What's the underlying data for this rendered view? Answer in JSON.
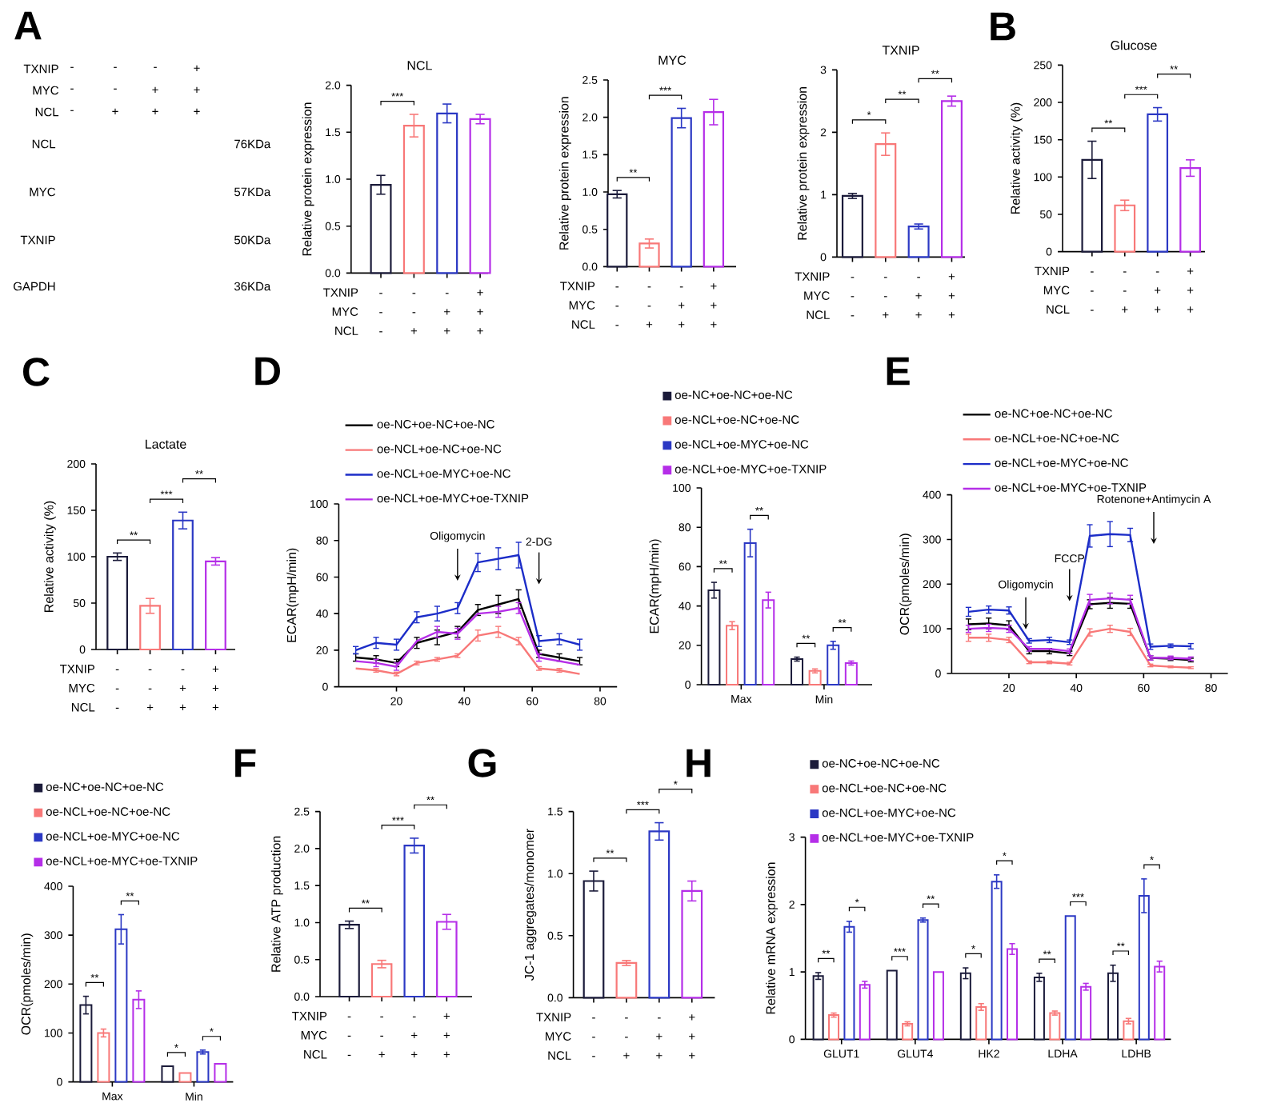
{
  "chart_data": [
    {
      "type": "other",
      "annotations": [
        "A",
        "TXNIP",
        "-",
        "-",
        "-",
        "+",
        "MYC",
        "-",
        "-",
        "+",
        "+",
        "NCL",
        "-",
        "+",
        "+",
        "+",
        "NCL",
        "MYC",
        "TXNIP",
        "GAPDH",
        "76KDa",
        "57KDa",
        "50KDa",
        "36KDa"
      ]
    },
    {
      "type": "bar",
      "title": "NCL",
      "ylabel": "Relative protein expression",
      "categories": [
        null,
        null,
        null,
        null
      ],
      "values": [
        0.94,
        1.57,
        1.7,
        1.64
      ],
      "errors": [
        0.1,
        0.12,
        0.1,
        0.05
      ],
      "colors": [
        "#1b1b3a",
        "#f87878",
        "#2b38c4",
        "#b52ee8"
      ],
      "ylim": [
        0,
        2
      ],
      "yticks": [
        {
          "value": 0,
          "label": "0.0"
        },
        0.5,
        {
          "value": 1,
          "label": "1.0"
        },
        1.5,
        {
          "value": 2,
          "label": "2.0"
        }
      ],
      "annotations": [
        "***",
        "TXNIP",
        "-",
        "-",
        "-",
        "+",
        "MYC",
        "-",
        "-",
        "+",
        "+",
        "NCL",
        "-",
        "+",
        "+",
        "+"
      ]
    },
    {
      "type": "bar",
      "title": "MYC",
      "ylabel": "Relative protein expression",
      "categories": [
        null,
        null,
        null,
        null
      ],
      "values": [
        0.97,
        0.31,
        1.99,
        2.07
      ],
      "errors": [
        0.05,
        0.06,
        0.13,
        0.17
      ],
      "colors": [
        "#1b1b3a",
        "#f87878",
        "#2b38c4",
        "#b52ee8"
      ],
      "ylim": [
        0,
        2.5
      ],
      "yticks": [
        {
          "value": 0,
          "label": "0.0"
        },
        0.5,
        {
          "value": 1,
          "label": "1.0"
        },
        1.5,
        {
          "value": 2,
          "label": "2.0"
        },
        2.5
      ],
      "annotations": [
        "**",
        "***",
        "TXNIP",
        "-",
        "-",
        "-",
        "+",
        "MYC",
        "-",
        "-",
        "+",
        "+",
        "NCL",
        "-",
        "+",
        "+",
        "+"
      ]
    },
    {
      "type": "bar",
      "title": "TXNIP",
      "ylabel": "Relative protein expression",
      "categories": [
        null,
        null,
        null,
        null
      ],
      "values": [
        0.98,
        1.81,
        0.49,
        2.5
      ],
      "errors": [
        0.04,
        0.18,
        0.04,
        0.08
      ],
      "colors": [
        "#1b1b3a",
        "#f87878",
        "#2b38c4",
        "#b52ee8"
      ],
      "ylim": [
        0,
        3
      ],
      "yticks": [
        0,
        1,
        2,
        3
      ],
      "annotations": [
        "*",
        "**",
        "**",
        "TXNIP",
        "-",
        "-",
        "-",
        "+",
        "MYC",
        "-",
        "-",
        "+",
        "+",
        "NCL",
        "-",
        "+",
        "+",
        "+"
      ]
    },
    {
      "type": "bar",
      "title": "Glucose",
      "ylabel": "Relative activity (%)",
      "categories": [
        null,
        null,
        null,
        null
      ],
      "values": [
        123,
        62,
        184,
        112
      ],
      "errors": [
        25,
        7,
        9,
        11
      ],
      "colors": [
        "#1b1b3a",
        "#f87878",
        "#2b38c4",
        "#b52ee8"
      ],
      "ylim": [
        0,
        250
      ],
      "yticks": [
        0,
        50,
        100,
        150,
        200,
        250
      ],
      "annotations": [
        "B",
        "**",
        "***",
        "**",
        "TXNIP",
        "-",
        "-",
        "-",
        "+",
        "MYC",
        "-",
        "-",
        "+",
        "+",
        "NCL",
        "-",
        "+",
        "+",
        "+"
      ]
    },
    {
      "type": "bar",
      "title": "Lactate",
      "ylabel": "Relative activity (%)",
      "categories": [
        null,
        null,
        null,
        null
      ],
      "values": [
        100,
        47,
        139,
        95
      ],
      "errors": [
        4,
        8,
        9,
        4
      ],
      "colors": [
        "#1b1b3a",
        "#f87878",
        "#2b38c4",
        "#b52ee8"
      ],
      "ylim": [
        0,
        200
      ],
      "yticks": [
        0,
        50,
        100,
        150,
        200
      ],
      "annotations": [
        "C",
        "**",
        "***",
        "**",
        "TXNIP",
        "-",
        "-",
        "-",
        "+",
        "MYC",
        "-",
        "-",
        "+",
        "+",
        "NCL",
        "-",
        "+",
        "+",
        "+"
      ]
    },
    {
      "type": "line",
      "ylabel": "ECAR(mpH/min)",
      "x": [
        8,
        14,
        20,
        26,
        32,
        38,
        44,
        50,
        56,
        62,
        68,
        74
      ],
      "series": [
        {
          "name": "oe-NC+oe-NC+oe-NC",
          "color": "#000000",
          "values": [
            16,
            15,
            13,
            24,
            27,
            30,
            42,
            45,
            48,
            18,
            16,
            14
          ],
          "errors": [
            2,
            2,
            2,
            3,
            4,
            3,
            3,
            5,
            5,
            2,
            2,
            2
          ]
        },
        {
          "name": "oe-NCL+oe-NC+oe-NC",
          "color": "#f87878",
          "values": [
            10,
            9,
            7,
            13,
            15,
            17,
            28,
            30,
            25,
            10,
            9,
            7
          ],
          "errors": [
            null,
            1,
            1,
            1,
            1,
            1,
            3,
            3,
            2,
            1,
            1,
            null
          ]
        },
        {
          "name": "oe-NCL+oe-MYC+oe-NC",
          "color": "#1c2dc8",
          "values": [
            20,
            24,
            23,
            38,
            40,
            43,
            68,
            70,
            72,
            25,
            26,
            23
          ],
          "errors": [
            2,
            3,
            3,
            3,
            4,
            3,
            5,
            6,
            7,
            3,
            3,
            3
          ]
        },
        {
          "name": "oe-NCL+oe-MYC+oe-TXNIP",
          "color": "#b52ee8",
          "values": [
            14,
            13,
            11,
            25,
            30,
            29,
            40,
            41,
            43,
            16,
            14,
            12
          ],
          "errors": [
            null,
            2,
            2,
            null,
            3,
            3,
            null,
            3,
            3,
            2,
            null,
            null
          ]
        }
      ],
      "xlim": [
        3,
        85
      ],
      "xticks": [
        20,
        40,
        60,
        80
      ],
      "ylim": [
        0,
        100
      ],
      "yticks": [
        0,
        20,
        40,
        60,
        80,
        100
      ],
      "legend": "top",
      "annotations": [
        "D",
        {
          "text": "Oligomycin",
          "x": 38,
          "y": 58
        },
        {
          "text": "2-DG",
          "x": 62,
          "y": 56
        }
      ]
    },
    {
      "type": "bar",
      "ylabel": "ECAR(mpH/min)",
      "categories": [
        "Max",
        "Min"
      ],
      "series": [
        {
          "name": "oe-NC+oe-NC+oe-NC",
          "color": "#1b1b3a",
          "values": [
            48,
            13
          ],
          "errors": [
            4,
            1
          ]
        },
        {
          "name": "oe-NCL+oe-NC+oe-NC",
          "color": "#f87878",
          "values": [
            30,
            7
          ],
          "errors": [
            2,
            1
          ]
        },
        {
          "name": "oe-NCL+oe-MYC+oe-NC",
          "color": "#2b38c4",
          "values": [
            72,
            20
          ],
          "errors": [
            7,
            2
          ]
        },
        {
          "name": "oe-NCL+oe-MYC+oe-TXNIP",
          "color": "#b52ee8",
          "values": [
            43,
            11
          ],
          "errors": [
            4,
            1
          ]
        }
      ],
      "ylim": [
        0,
        100
      ],
      "yticks": [
        0,
        20,
        40,
        60,
        80,
        100
      ],
      "legend": "top",
      "annotations": [
        "**",
        "**",
        "**",
        "**"
      ]
    },
    {
      "type": "line",
      "ylabel": "OCR(pmoles/min)",
      "x": [
        8,
        14,
        20,
        26,
        32,
        38,
        44,
        50,
        56,
        62,
        68,
        74
      ],
      "series": [
        {
          "name": "oe-NC+oe-NC+oe-NC",
          "color": "#000000",
          "values": [
            110,
            112,
            108,
            50,
            50,
            45,
            155,
            158,
            156,
            35,
            33,
            30
          ],
          "errors": [
            12,
            12,
            10,
            6,
            6,
            5,
            10,
            12,
            10,
            5,
            4,
            4
          ]
        },
        {
          "name": "oe-NCL+oe-NC+oe-NC",
          "color": "#f87878",
          "values": [
            80,
            80,
            75,
            25,
            25,
            22,
            92,
            100,
            93,
            18,
            15,
            13
          ],
          "errors": [
            8,
            8,
            6,
            3,
            3,
            3,
            8,
            8,
            8,
            3,
            2,
            2
          ]
        },
        {
          "name": "oe-NCL+oe-MYC+oe-NC",
          "color": "#1c2dc8",
          "values": [
            138,
            143,
            141,
            73,
            75,
            70,
            308,
            312,
            310,
            60,
            62,
            61
          ],
          "errors": [
            10,
            8,
            8,
            5,
            6,
            5,
            25,
            28,
            15,
            6,
            4,
            6
          ]
        },
        {
          "name": "oe-NCL+oe-MYC+oe-TXNIP",
          "color": "#b52ee8",
          "values": [
            100,
            102,
            100,
            55,
            55,
            50,
            165,
            168,
            165,
            35,
            35,
            33
          ],
          "errors": [
            8,
            8,
            8,
            5,
            null,
            5,
            12,
            12,
            10,
            5,
            4,
            4
          ]
        }
      ],
      "xlim": [
        3,
        85
      ],
      "xticks": [
        20,
        40,
        60,
        80
      ],
      "ylim": [
        0,
        400
      ],
      "yticks": [
        0,
        100,
        200,
        300,
        400
      ],
      "legend": "top",
      "annotations": [
        "E",
        {
          "text": "Oligomycin",
          "x": 25,
          "y": 99
        },
        {
          "text": "FCCP",
          "x": 38,
          "y": 162
        },
        {
          "text": "Rotenone+Antimycin A",
          "x": 63,
          "y": 290
        }
      ]
    },
    {
      "type": "bar",
      "ylabel": "OCR(pmoles/min)",
      "categories": [
        "Max",
        "Min"
      ],
      "series": [
        {
          "name": "oe-NC+oe-NC+oe-NC",
          "color": "#1b1b3a",
          "values": [
            157,
            32
          ],
          "errors": [
            18,
            null
          ]
        },
        {
          "name": "oe-NCL+oe-NC+oe-NC",
          "color": "#f87878",
          "values": [
            100,
            18
          ],
          "errors": [
            8,
            null
          ]
        },
        {
          "name": "oe-NCL+oe-MYC+oe-NC",
          "color": "#2b38c4",
          "values": [
            312,
            61
          ],
          "errors": [
            30,
            4
          ]
        },
        {
          "name": "oe-NCL+oe-MYC+oe-TXNIP",
          "color": "#b52ee8",
          "values": [
            168,
            37
          ],
          "errors": [
            18,
            null
          ]
        }
      ],
      "ylim": [
        0,
        400
      ],
      "yticks": [
        0,
        100,
        200,
        300,
        400
      ],
      "legend": "top",
      "annotations": [
        "**",
        "**",
        "*",
        "*"
      ]
    },
    {
      "type": "bar",
      "ylabel": "Relative ATP production",
      "categories": [
        null,
        null,
        null,
        null
      ],
      "values": [
        0.97,
        0.44,
        2.04,
        1.01
      ],
      "errors": [
        0.05,
        0.05,
        0.1,
        0.1
      ],
      "colors": [
        "#1b1b3a",
        "#f87878",
        "#2b38c4",
        "#b52ee8"
      ],
      "ylim": [
        0,
        2.5
      ],
      "yticks": [
        {
          "value": 0,
          "label": "0.0"
        },
        0.5,
        {
          "value": 1,
          "label": "1.0"
        },
        1.5,
        {
          "value": 2,
          "label": "2.0"
        },
        2.5
      ],
      "annotations": [
        "F",
        "**",
        "***",
        "**",
        "TXNIP",
        "-",
        "-",
        "-",
        "+",
        "MYC",
        "-",
        "-",
        "+",
        "+",
        "NCL",
        "-",
        "+",
        "+",
        "+"
      ]
    },
    {
      "type": "bar",
      "ylabel": "JC-1 aggregates/monomer",
      "categories": [
        null,
        null,
        null,
        null
      ],
      "values": [
        0.94,
        0.28,
        1.34,
        0.86
      ],
      "errors": [
        0.08,
        0.02,
        0.07,
        0.08
      ],
      "colors": [
        "#1b1b3a",
        "#f87878",
        "#2b38c4",
        "#b52ee8"
      ],
      "ylim": [
        0,
        1.5
      ],
      "yticks": [
        {
          "value": 0,
          "label": "0.0"
        },
        0.5,
        {
          "value": 1,
          "label": "1.0"
        },
        1.5
      ],
      "annotations": [
        "G",
        "**",
        "***",
        "*",
        "TXNIP",
        "-",
        "-",
        "-",
        "+",
        "MYC",
        "-",
        "-",
        "+",
        "+",
        "NCL",
        "-",
        "+",
        "+",
        "+"
      ]
    },
    {
      "type": "bar",
      "ylabel": "Relative mRNA expression",
      "categories": [
        "GLUT1",
        "GLUT4",
        "HK2",
        "LDHA",
        "LDHB"
      ],
      "series": [
        {
          "name": "oe-NC+oe-NC+oe-NC",
          "color": "#1b1b3a",
          "values": [
            0.94,
            1.02,
            0.98,
            0.92,
            0.98
          ],
          "errors": [
            0.05,
            null,
            0.08,
            0.06,
            0.12
          ]
        },
        {
          "name": "oe-NCL+oe-NC+oe-NC",
          "color": "#f87878",
          "values": [
            0.36,
            0.23,
            0.48,
            0.39,
            0.27
          ],
          "errors": [
            0.03,
            0.03,
            0.05,
            0.03,
            0.04
          ]
        },
        {
          "name": "oe-NCL+oe-MYC+oe-NC",
          "color": "#2b38c4",
          "values": [
            1.67,
            1.77,
            2.34,
            1.83,
            2.13
          ],
          "errors": [
            0.08,
            0.03,
            0.1,
            null,
            0.25
          ]
        },
        {
          "name": "oe-NCL+oe-MYC+oe-TXNIP",
          "color": "#b52ee8",
          "values": [
            0.81,
            1.0,
            1.34,
            0.78,
            1.08
          ],
          "errors": [
            0.05,
            null,
            0.08,
            0.05,
            0.08
          ]
        }
      ],
      "ylim": [
        0,
        3
      ],
      "yticks": [
        0,
        1,
        2,
        3
      ],
      "legend": "top",
      "annotations": [
        "H",
        "**",
        "*",
        "***",
        "**",
        "*",
        "*",
        "**",
        "***",
        "**",
        "*"
      ]
    }
  ]
}
